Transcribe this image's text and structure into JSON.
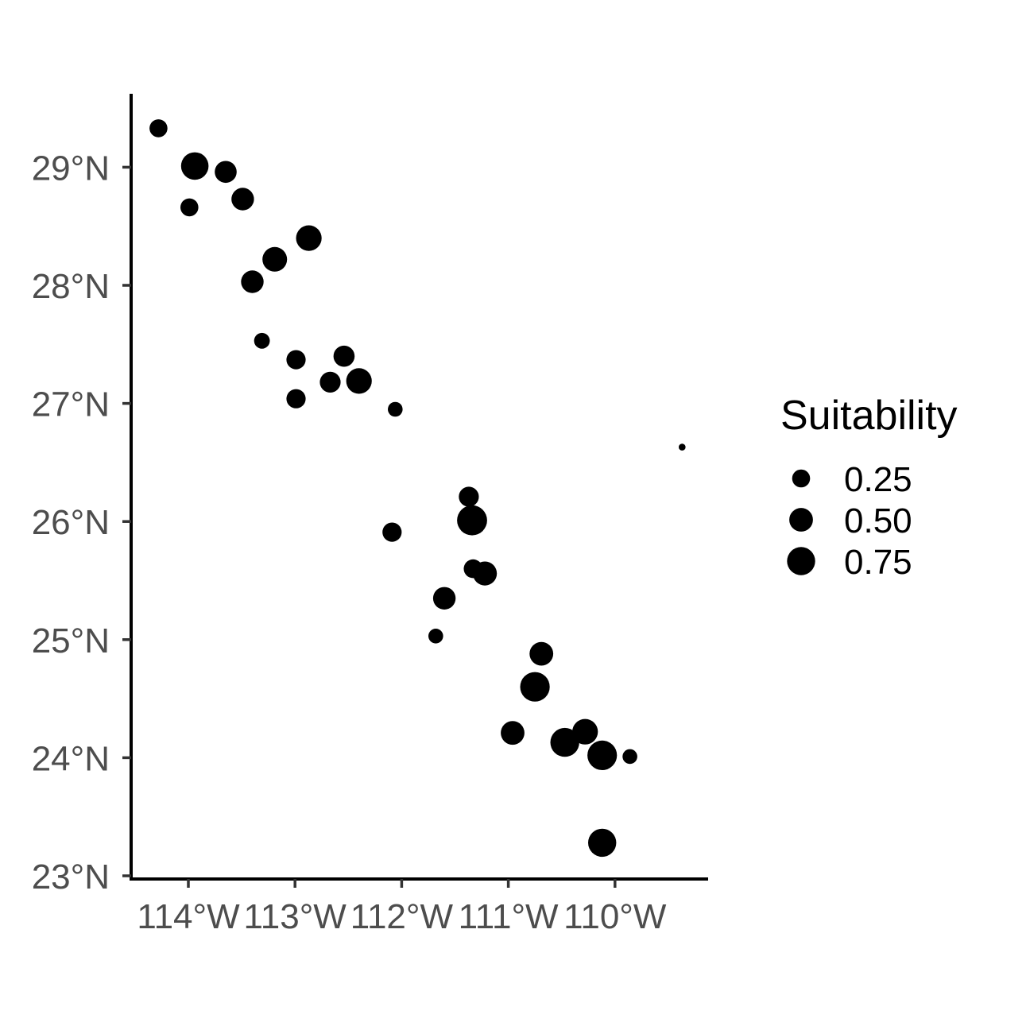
{
  "chart_data": {
    "type": "scatter",
    "title": "",
    "xlabel": "",
    "ylabel": "",
    "xlim": [
      -114.55,
      -109.15
    ],
    "ylim": [
      22.98,
      29.62
    ],
    "x_ticks": [
      {
        "value": -114,
        "label": "114°W"
      },
      {
        "value": -113,
        "label": "113°W"
      },
      {
        "value": -112,
        "label": "112°W"
      },
      {
        "value": -111,
        "label": "111°W"
      },
      {
        "value": -110,
        "label": "110°W"
      }
    ],
    "y_ticks": [
      {
        "value": 23,
        "label": "23°N"
      },
      {
        "value": 24,
        "label": "24°N"
      },
      {
        "value": 25,
        "label": "25°N"
      },
      {
        "value": 26,
        "label": "26°N"
      },
      {
        "value": 27,
        "label": "27°N"
      },
      {
        "value": 28,
        "label": "28°N"
      },
      {
        "value": 29,
        "label": "29°N"
      }
    ],
    "grid": false,
    "size_variable": "Suitability",
    "legend": {
      "title": "Suitability",
      "position": "right",
      "entries": [
        {
          "value": 0.25,
          "label": "0.25"
        },
        {
          "value": 0.5,
          "label": "0.50"
        },
        {
          "value": 0.75,
          "label": "0.75"
        }
      ]
    },
    "points": [
      {
        "lon": -114.28,
        "lat": 29.33,
        "suitability": 0.25
      },
      {
        "lon": -113.94,
        "lat": 29.01,
        "suitability": 0.72
      },
      {
        "lon": -113.65,
        "lat": 28.96,
        "suitability": 0.42
      },
      {
        "lon": -113.99,
        "lat": 28.66,
        "suitability": 0.25
      },
      {
        "lon": -113.49,
        "lat": 28.73,
        "suitability": 0.45
      },
      {
        "lon": -112.87,
        "lat": 28.4,
        "suitability": 0.6
      },
      {
        "lon": -113.19,
        "lat": 28.22,
        "suitability": 0.55
      },
      {
        "lon": -113.4,
        "lat": 28.03,
        "suitability": 0.45
      },
      {
        "lon": -113.31,
        "lat": 27.53,
        "suitability": 0.18
      },
      {
        "lon": -112.54,
        "lat": 27.4,
        "suitability": 0.38
      },
      {
        "lon": -112.99,
        "lat": 27.37,
        "suitability": 0.3
      },
      {
        "lon": -112.67,
        "lat": 27.18,
        "suitability": 0.37
      },
      {
        "lon": -112.4,
        "lat": 27.19,
        "suitability": 0.6
      },
      {
        "lon": -112.99,
        "lat": 27.04,
        "suitability": 0.3
      },
      {
        "lon": -112.06,
        "lat": 26.95,
        "suitability": 0.15
      },
      {
        "lon": -111.37,
        "lat": 26.21,
        "suitability": 0.33
      },
      {
        "lon": -111.34,
        "lat": 26.01,
        "suitability": 0.88
      },
      {
        "lon": -112.09,
        "lat": 25.91,
        "suitability": 0.3
      },
      {
        "lon": -111.33,
        "lat": 25.6,
        "suitability": 0.28
      },
      {
        "lon": -111.22,
        "lat": 25.56,
        "suitability": 0.52
      },
      {
        "lon": -111.6,
        "lat": 25.35,
        "suitability": 0.45
      },
      {
        "lon": -111.68,
        "lat": 25.03,
        "suitability": 0.15
      },
      {
        "lon": -110.69,
        "lat": 24.88,
        "suitability": 0.5
      },
      {
        "lon": -110.75,
        "lat": 24.6,
        "suitability": 0.85
      },
      {
        "lon": -110.96,
        "lat": 24.21,
        "suitability": 0.5
      },
      {
        "lon": -110.47,
        "lat": 24.13,
        "suitability": 0.8
      },
      {
        "lon": -110.28,
        "lat": 24.22,
        "suitability": 0.6
      },
      {
        "lon": -110.12,
        "lat": 24.02,
        "suitability": 0.85
      },
      {
        "lon": -109.86,
        "lat": 24.01,
        "suitability": 0.15
      },
      {
        "lon": -110.12,
        "lat": 23.28,
        "suitability": 0.75
      },
      {
        "lon": -109.37,
        "lat": 26.63,
        "suitability": 0.01
      }
    ]
  }
}
